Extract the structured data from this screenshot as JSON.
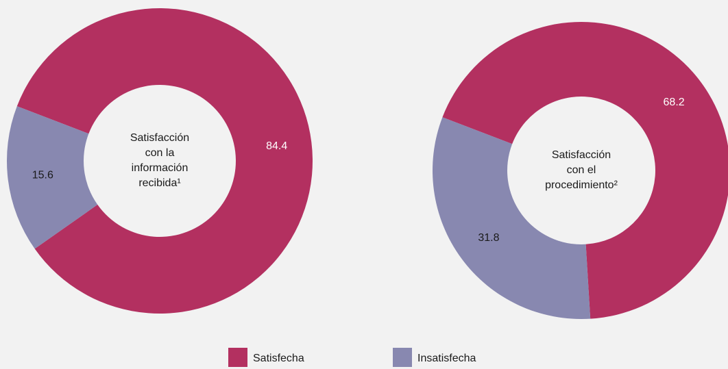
{
  "chart_data": [
    {
      "type": "donut",
      "center_label": [
        "Satisfacción",
        "con la",
        "información",
        "recibida¹"
      ],
      "categories": [
        "Satisfecha",
        "Insatisfecha"
      ],
      "values": [
        84.4,
        15.6
      ],
      "colors": [
        "#b33060",
        "#8888b0"
      ]
    },
    {
      "type": "donut",
      "center_label": [
        "Satisfacción",
        "con el",
        "procedimiento²"
      ],
      "categories": [
        "Satisfecha",
        "Insatisfecha"
      ],
      "values": [
        68.2,
        31.8
      ],
      "colors": [
        "#b33060",
        "#8888b0"
      ]
    }
  ]
}
